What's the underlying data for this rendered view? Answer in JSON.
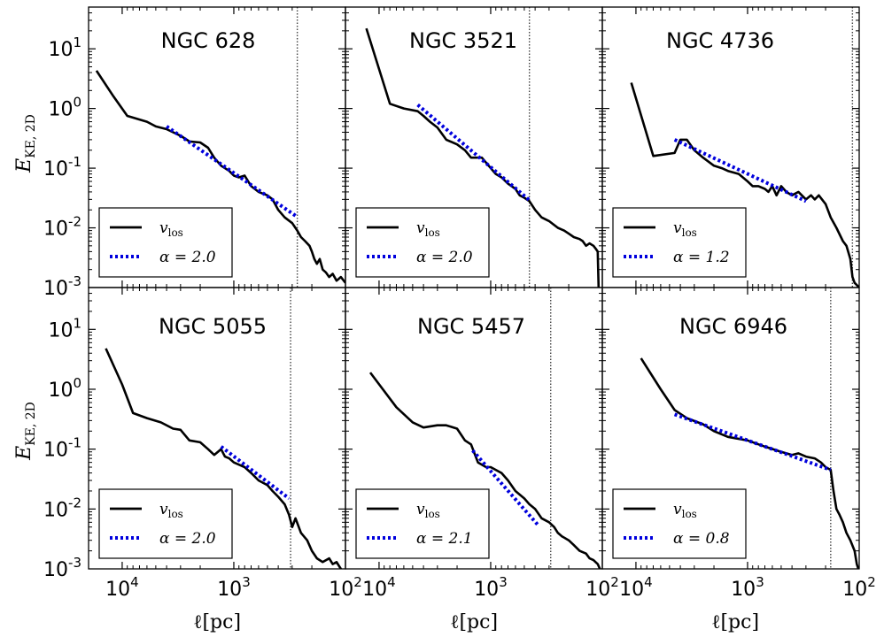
{
  "figure": {
    "ylabel": {
      "main": "E",
      "sub": "KE, 2D"
    },
    "xlabel": "ℓ[pc]",
    "yticks": [
      {
        "base": "10",
        "exp": "1"
      },
      {
        "base": "10",
        "exp": "0"
      },
      {
        "base": "10",
        "exp": "-1"
      },
      {
        "base": "10",
        "exp": "-2"
      },
      {
        "base": "10",
        "exp": "-3"
      }
    ],
    "xticks": [
      {
        "base": "10",
        "exp": "4"
      },
      {
        "base": "10",
        "exp": "3"
      },
      {
        "base": "10",
        "exp": "2"
      }
    ],
    "legend": {
      "line_label_main": "v",
      "line_label_sub": "los",
      "fit_prefix": "α = "
    },
    "colors": {
      "data": "#000000",
      "fit": "#0000dd",
      "vline": "#444444"
    }
  },
  "chart_data": [
    {
      "type": "line",
      "title": "NGC 628",
      "xscale": "log",
      "yscale": "log",
      "x_reversed": true,
      "xlim": [
        20000,
        100
      ],
      "ylim": [
        0.001,
        50
      ],
      "xlabel": "",
      "ylabel": "E_KE,2D",
      "alpha": "2.0",
      "vline_x": 270,
      "series": [
        {
          "name": "v_los",
          "x": [
            17000,
            12000,
            9000,
            6000,
            5000,
            4000,
            3500,
            3000,
            2500,
            2000,
            1700,
            1500,
            1300,
            1100,
            1000,
            900,
            800,
            700,
            600,
            500,
            450,
            400,
            350,
            300,
            270,
            250,
            230,
            210,
            200,
            190,
            180,
            170,
            160,
            150,
            140,
            130,
            120,
            110,
            100
          ],
          "y": [
            4.3,
            1.6,
            0.75,
            0.6,
            0.5,
            0.45,
            0.4,
            0.35,
            0.28,
            0.27,
            0.22,
            0.15,
            0.11,
            0.09,
            0.075,
            0.07,
            0.075,
            0.05,
            0.04,
            0.035,
            0.03,
            0.02,
            0.015,
            0.012,
            0.009,
            0.007,
            0.006,
            0.005,
            0.004,
            0.003,
            0.0025,
            0.003,
            0.002,
            0.0018,
            0.0015,
            0.0017,
            0.0013,
            0.0015,
            0.0012
          ]
        },
        {
          "name": "fit",
          "x": [
            4000,
            280
          ],
          "y": [
            0.5,
            0.016
          ]
        }
      ]
    },
    {
      "type": "line",
      "title": "NGC 3521",
      "xscale": "log",
      "yscale": "log",
      "x_reversed": true,
      "xlim": [
        20000,
        100
      ],
      "ylim": [
        0.001,
        50
      ],
      "xlabel": "",
      "ylabel": "",
      "alpha": "2.0",
      "vline_x": 450,
      "series": [
        {
          "name": "v_los",
          "x": [
            13000,
            8000,
            6000,
            4500,
            4000,
            3500,
            3000,
            2500,
            2000,
            1700,
            1500,
            1200,
            1000,
            900,
            800,
            700,
            600,
            550,
            500,
            450,
            400,
            350,
            300,
            250,
            220,
            200,
            180,
            160,
            150,
            140,
            130,
            120,
            115,
            110,
            108
          ],
          "y": [
            22,
            1.2,
            1.0,
            0.9,
            0.75,
            0.6,
            0.48,
            0.3,
            0.25,
            0.2,
            0.15,
            0.15,
            0.1,
            0.08,
            0.07,
            0.055,
            0.045,
            0.035,
            0.032,
            0.028,
            0.02,
            0.015,
            0.013,
            0.01,
            0.009,
            0.008,
            0.007,
            0.0065,
            0.006,
            0.005,
            0.0055,
            0.005,
            0.0045,
            0.004,
            0.001
          ]
        },
        {
          "name": "fit",
          "x": [
            4500,
            450
          ],
          "y": [
            1.15,
            0.029
          ]
        }
      ]
    },
    {
      "type": "line",
      "title": "NGC 4736",
      "xscale": "log",
      "yscale": "log",
      "x_reversed": true,
      "xlim": [
        20000,
        100
      ],
      "ylim": [
        0.001,
        50
      ],
      "xlabel": "",
      "ylabel": "",
      "alpha": "1.2",
      "vline_x": 115,
      "series": [
        {
          "name": "v_los",
          "x": [
            11000,
            7000,
            4500,
            4000,
            3500,
            3000,
            2500,
            2000,
            1700,
            1500,
            1200,
            1000,
            900,
            800,
            700,
            650,
            600,
            550,
            500,
            450,
            400,
            350,
            300,
            270,
            250,
            230,
            200,
            180,
            160,
            140,
            130,
            120,
            115,
            110,
            105,
            100
          ],
          "y": [
            2.7,
            0.16,
            0.18,
            0.3,
            0.3,
            0.2,
            0.15,
            0.11,
            0.1,
            0.09,
            0.08,
            0.06,
            0.05,
            0.05,
            0.045,
            0.04,
            0.05,
            0.035,
            0.05,
            0.04,
            0.035,
            0.04,
            0.03,
            0.035,
            0.03,
            0.035,
            0.025,
            0.015,
            0.01,
            0.006,
            0.005,
            0.003,
            0.0015,
            0.0012,
            0.0011,
            0.001
          ]
        },
        {
          "name": "fit",
          "x": [
            4500,
            300
          ],
          "y": [
            0.3,
            0.028
          ]
        }
      ]
    },
    {
      "type": "line",
      "title": "NGC 5055",
      "xscale": "log",
      "yscale": "log",
      "x_reversed": true,
      "xlim": [
        20000,
        100
      ],
      "ylim": [
        0.001,
        50
      ],
      "xlabel": "ℓ[pc]",
      "ylabel": "E_KE,2D",
      "alpha": "2.0",
      "vline_x": 310,
      "series": [
        {
          "name": "v_los",
          "x": [
            14000,
            10000,
            8000,
            6000,
            4500,
            3500,
            3000,
            2500,
            2000,
            1700,
            1500,
            1300,
            1200,
            1100,
            1000,
            900,
            800,
            700,
            600,
            500,
            450,
            400,
            350,
            320,
            300,
            280,
            250,
            220,
            200,
            180,
            160,
            140,
            130,
            120,
            110,
            105
          ],
          "y": [
            4.8,
            1.2,
            0.4,
            0.33,
            0.28,
            0.22,
            0.21,
            0.14,
            0.13,
            0.1,
            0.08,
            0.1,
            0.075,
            0.07,
            0.06,
            0.055,
            0.05,
            0.04,
            0.03,
            0.025,
            0.02,
            0.016,
            0.012,
            0.008,
            0.005,
            0.007,
            0.004,
            0.003,
            0.002,
            0.0015,
            0.0013,
            0.0015,
            0.0012,
            0.0013,
            0.001,
            0.0008
          ]
        },
        {
          "name": "fit",
          "x": [
            1300,
            320
          ],
          "y": [
            0.11,
            0.015
          ]
        }
      ]
    },
    {
      "type": "line",
      "title": "NGC 5457",
      "xscale": "log",
      "yscale": "log",
      "x_reversed": true,
      "xlim": [
        20000,
        100
      ],
      "ylim": [
        0.001,
        50
      ],
      "xlabel": "ℓ[pc]",
      "ylabel": "",
      "alpha": "2.1",
      "vline_x": 290,
      "series": [
        {
          "name": "v_los",
          "x": [
            12000,
            7000,
            5000,
            4000,
            3000,
            2500,
            2000,
            1700,
            1500,
            1300,
            1100,
            1000,
            900,
            800,
            700,
            600,
            500,
            450,
            400,
            350,
            300,
            270,
            250,
            230,
            200,
            180,
            160,
            140,
            130,
            120,
            110,
            105,
            100
          ],
          "y": [
            1.9,
            0.5,
            0.28,
            0.23,
            0.25,
            0.25,
            0.22,
            0.14,
            0.12,
            0.06,
            0.05,
            0.05,
            0.045,
            0.04,
            0.03,
            0.02,
            0.015,
            0.012,
            0.01,
            0.007,
            0.006,
            0.005,
            0.004,
            0.0035,
            0.003,
            0.0025,
            0.002,
            0.0018,
            0.0015,
            0.0014,
            0.0012,
            0.001,
            0.0008
          ]
        },
        {
          "name": "fit",
          "x": [
            1450,
            380
          ],
          "y": [
            0.095,
            0.0055
          ]
        }
      ]
    },
    {
      "type": "line",
      "title": "NGC 6946",
      "xscale": "log",
      "yscale": "log",
      "x_reversed": true,
      "xlim": [
        20000,
        100
      ],
      "ylim": [
        0.001,
        50
      ],
      "xlabel": "ℓ[pc]",
      "ylabel": "",
      "alpha": "0.8",
      "vline_x": 180,
      "series": [
        {
          "name": "v_los",
          "x": [
            9000,
            6000,
            4500,
            3500,
            2500,
            2000,
            1500,
            1000,
            700,
            500,
            400,
            350,
            300,
            250,
            220,
            200,
            180,
            170,
            160,
            150,
            140,
            130,
            120,
            110,
            105,
            100
          ],
          "y": [
            3.3,
            1.0,
            0.45,
            0.33,
            0.26,
            0.2,
            0.16,
            0.14,
            0.11,
            0.09,
            0.08,
            0.085,
            0.075,
            0.07,
            0.06,
            0.05,
            0.045,
            0.02,
            0.01,
            0.008,
            0.006,
            0.004,
            0.003,
            0.002,
            0.0012,
            0.0009
          ]
        },
        {
          "name": "fit",
          "x": [
            4500,
            180
          ],
          "y": [
            0.38,
            0.045
          ]
        }
      ]
    }
  ]
}
